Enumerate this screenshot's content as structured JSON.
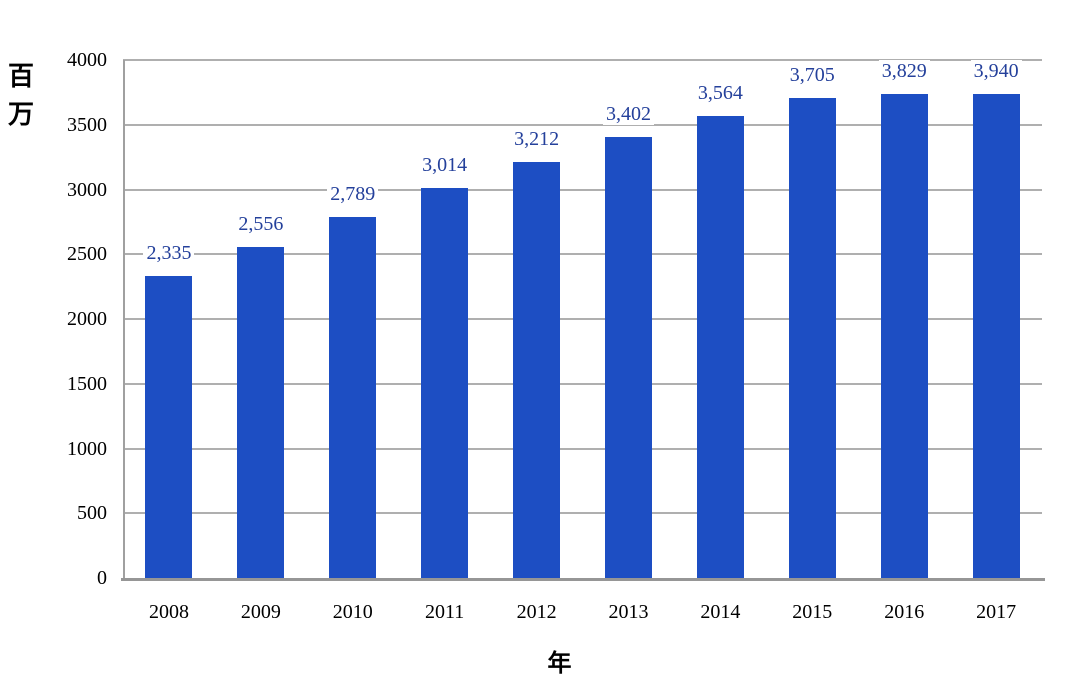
{
  "chart_data": {
    "type": "bar",
    "title": "",
    "xlabel": "年",
    "ylabel": "百万",
    "categories": [
      "2008",
      "2009",
      "2010",
      "2011",
      "2012",
      "2013",
      "2014",
      "2015",
      "2016",
      "2017"
    ],
    "values": [
      2335,
      2556,
      2789,
      3014,
      3212,
      3402,
      3564,
      3705,
      3829,
      3940
    ],
    "value_labels": [
      "2,335",
      "2,556",
      "2,789",
      "3,014",
      "3,212",
      "3,402",
      "3,564",
      "3,705",
      "3,829",
      "3,940"
    ],
    "ylim": [
      0,
      4000
    ],
    "yticks": [
      0,
      500,
      1000,
      1500,
      2000,
      2500,
      3000,
      3500,
      4000
    ],
    "grid": true,
    "legend": false,
    "colors": {
      "bar": "#1D4EC3",
      "data_label": "#24409B",
      "axis_text": "#000000",
      "gridline": "#AFAFAF",
      "axis_line": "#969696",
      "background": "#FFFFFF"
    }
  }
}
